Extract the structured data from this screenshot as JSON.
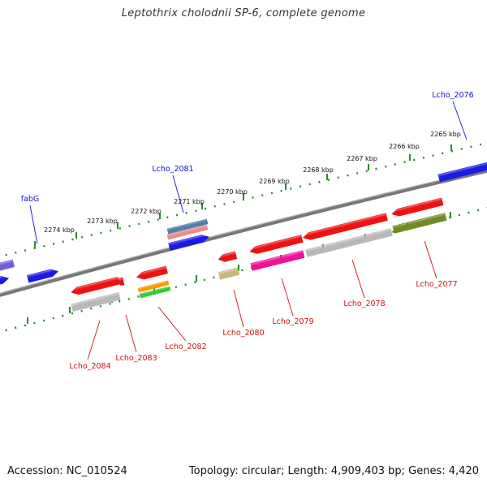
{
  "title": "Leptothrix cholodnii SP-6, complete genome",
  "footer": {
    "accession": "Accession: NC_010524",
    "info": "Topology: circular; Length: 4,909,403 bp; Genes: 4,420"
  },
  "colors": {
    "backbone": "#777777",
    "scale_dots": "#2a8a2a",
    "label_top": "#1010cc",
    "label_bottom": "#cc1010",
    "gene_blue": "#1a1ae6",
    "gene_purple": "#7060d8",
    "gene_red": "#ee1111",
    "gene_gray": "#b8b8b8",
    "gene_pink": "#ee1199",
    "gene_olive": "#6f8a22",
    "gene_khaki": "#c8b878",
    "gene_orange": "#ff9900",
    "gene_green": "#33cc33",
    "gene_steel": "#4f7fa8",
    "gene_salmon": "#f08a8a"
  },
  "scale_labels": [
    "2265 kbp",
    "2266 kbp",
    "2267 kbp",
    "2268 kbp",
    "2269 kbp",
    "2270 kbp",
    "2271 kbp",
    "2272 kbp",
    "2273 kbp",
    "2274 kbp"
  ],
  "gene_labels_top": [
    "Lcho_2076",
    "Lcho_2081",
    "fabG"
  ],
  "gene_labels_bottom": [
    "Lcho_2077",
    "Lcho_2078",
    "Lcho_2079",
    "Lcho_2080",
    "Lcho_2082",
    "Lcho_2083",
    "Lcho_2084"
  ]
}
